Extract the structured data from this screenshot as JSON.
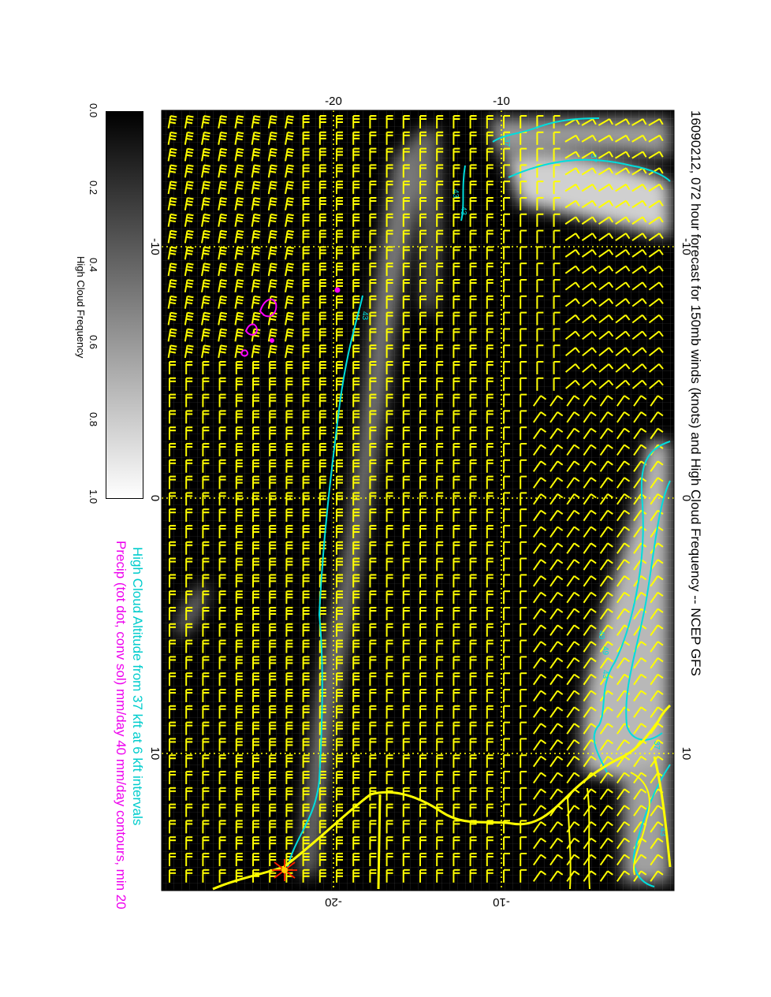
{
  "title": "16090212, 072 hour forecast for 150mb winds (knots) and High Cloud Frequency -- NCEP GFS",
  "subtitle_altitude": "High Cloud Altitude from 37 kft at 6 kft intervals",
  "subtitle_precip": "Precip (tot dot, conv sol) mm/day 40 mm/day contours, min 20",
  "colorbar": {
    "label": "High Cloud Frequency",
    "ticks": [
      "0.0",
      "0.2",
      "0.4",
      "0.6",
      "0.8",
      "1.0"
    ],
    "range": [
      0.0,
      1.0
    ]
  },
  "axes": {
    "longitude_ticks_top": [
      "-20",
      "-10"
    ],
    "longitude_ticks_bottom": [
      "-20",
      "-10"
    ],
    "latitude_ticks_left": [
      "-10",
      "0",
      "10"
    ],
    "latitude_ticks_right": [
      "-10",
      "0",
      "10"
    ]
  },
  "contour_labels": [
    "43",
    "37",
    "43",
    "49",
    "43",
    "37",
    "43",
    "49",
    "37",
    "43"
  ],
  "colors": {
    "background": "#000000",
    "wind_barbs": "#ffff00",
    "coastline": "#ffff00",
    "altitude_contours": "#00e5e5",
    "precip_contours": "#ff00ff",
    "marker": "#ff2000"
  }
}
